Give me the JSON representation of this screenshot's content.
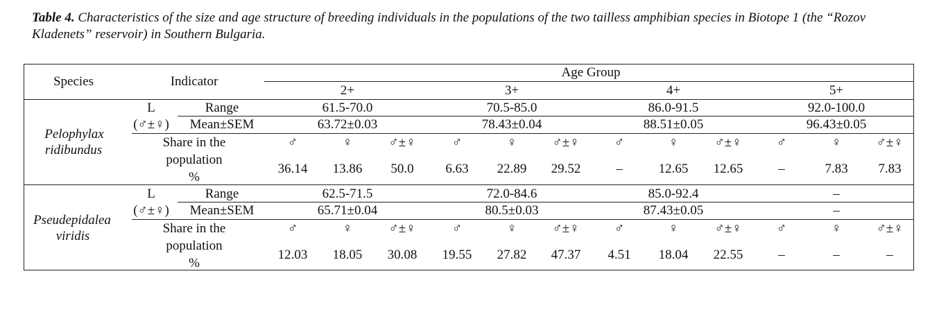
{
  "caption": {
    "label": "Table 4.",
    "text": "Characteristics of the size and age structure of breeding individuals in the populations of the two tailless amphibian species in Biotope 1 (the “Rozov Kladenets” reservoir) in Southern Bulgaria."
  },
  "header": {
    "species": "Species",
    "indicator": "Indicator",
    "age_group": "Age Group",
    "groups": [
      "2+",
      "3+",
      "4+",
      "5+"
    ]
  },
  "labels": {
    "L": "L",
    "sex": "(♂±♀)",
    "range": "Range",
    "mean": "Mean±SEM",
    "share1": "Share in the",
    "share2": "population",
    "share3": "%",
    "male": "♂",
    "female": "♀",
    "both": "♂±♀"
  },
  "species": [
    {
      "name1": "Pelophylax",
      "name2": "ridibundus",
      "range": [
        "61.5-70.0",
        "70.5-85.0",
        "86.0-91.5",
        "92.0-100.0"
      ],
      "mean": [
        "63.72±0.03",
        "78.43±0.04",
        "88.51±0.05",
        "96.43±0.05"
      ],
      "share": [
        "36.14",
        "13.86",
        "50.0",
        "6.63",
        "22.89",
        "29.52",
        "–",
        "12.65",
        "12.65",
        "–",
        "7.83",
        "7.83"
      ]
    },
    {
      "name1": "Pseudepidalea",
      "name2": "viridis",
      "range": [
        "62.5-71.5",
        "72.0-84.6",
        "85.0-92.4",
        "–"
      ],
      "mean": [
        "65.71±0.04",
        "80.5±0.03",
        "87.43±0.05",
        "–"
      ],
      "share": [
        "12.03",
        "18.05",
        "30.08",
        "19.55",
        "27.82",
        "47.37",
        "4.51",
        "18.04",
        "22.55",
        "–",
        "–",
        "–"
      ]
    }
  ]
}
